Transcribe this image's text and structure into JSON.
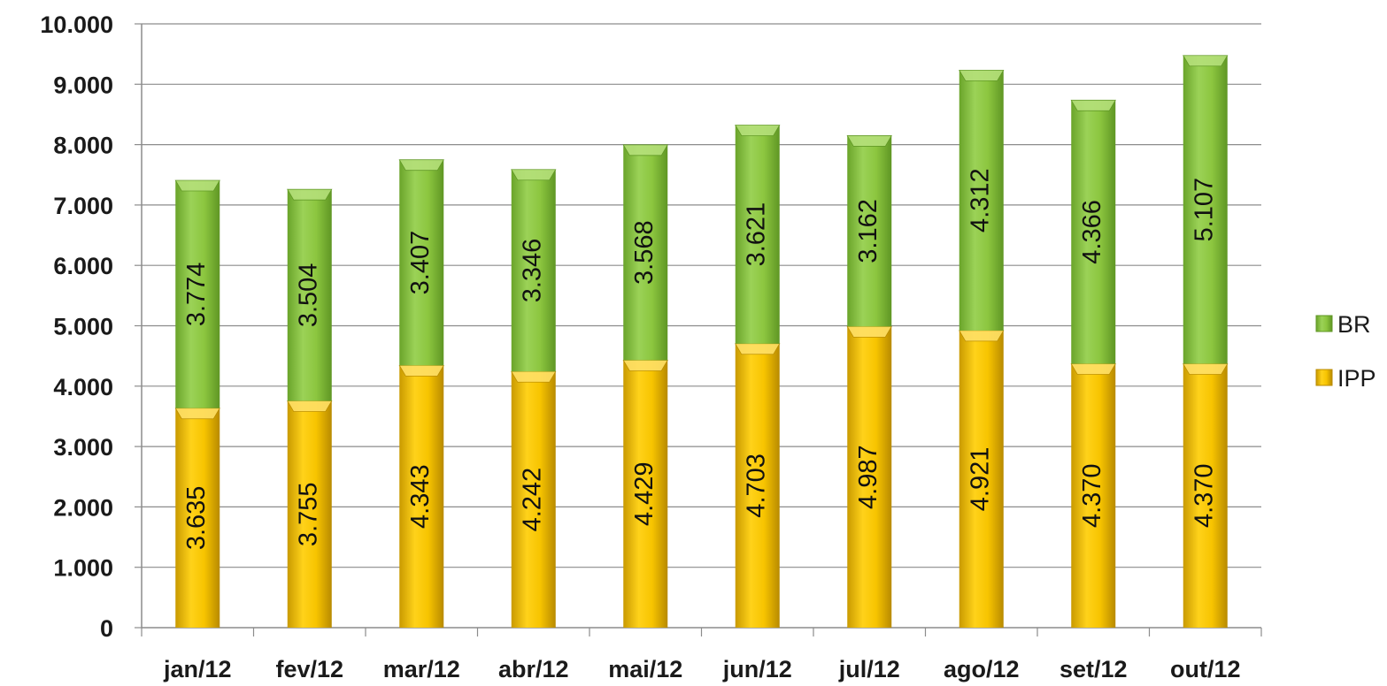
{
  "chart_data": {
    "type": "bar",
    "stacked": true,
    "categories": [
      "jan/12",
      "fev/12",
      "mar/12",
      "abr/12",
      "mai/12",
      "jun/12",
      "jul/12",
      "ago/12",
      "set/12",
      "out/12"
    ],
    "series": [
      {
        "name": "IPP",
        "color": "#f2c200",
        "values": [
          3635,
          3755,
          4343,
          4242,
          4429,
          4703,
          4987,
          4921,
          4370,
          4370
        ],
        "labels": [
          "3.635",
          "3.755",
          "4.343",
          "4.242",
          "4.429",
          "4.703",
          "4.987",
          "4.921",
          "4.370",
          "4.370"
        ]
      },
      {
        "name": "BR",
        "color": "#8cc63f",
        "values": [
          3774,
          3504,
          3407,
          3346,
          3568,
          3621,
          3162,
          4312,
          4366,
          5107
        ],
        "labels": [
          "3.774",
          "3.504",
          "3.407",
          "3.346",
          "3.568",
          "3.621",
          "3.162",
          "4.312",
          "4.366",
          "5.107"
        ]
      }
    ],
    "ylim": [
      0,
      10000
    ],
    "yticks": [
      0,
      1000,
      2000,
      3000,
      4000,
      5000,
      6000,
      7000,
      8000,
      9000,
      10000
    ],
    "ytick_labels": [
      "0",
      "1.000",
      "2.000",
      "3.000",
      "4.000",
      "5.000",
      "6.000",
      "7.000",
      "8.000",
      "9.000",
      "10.000"
    ],
    "grid": true,
    "legend_position": "right",
    "legend": [
      "BR",
      "IPP"
    ],
    "title": "",
    "xlabel": "",
    "ylabel": ""
  }
}
